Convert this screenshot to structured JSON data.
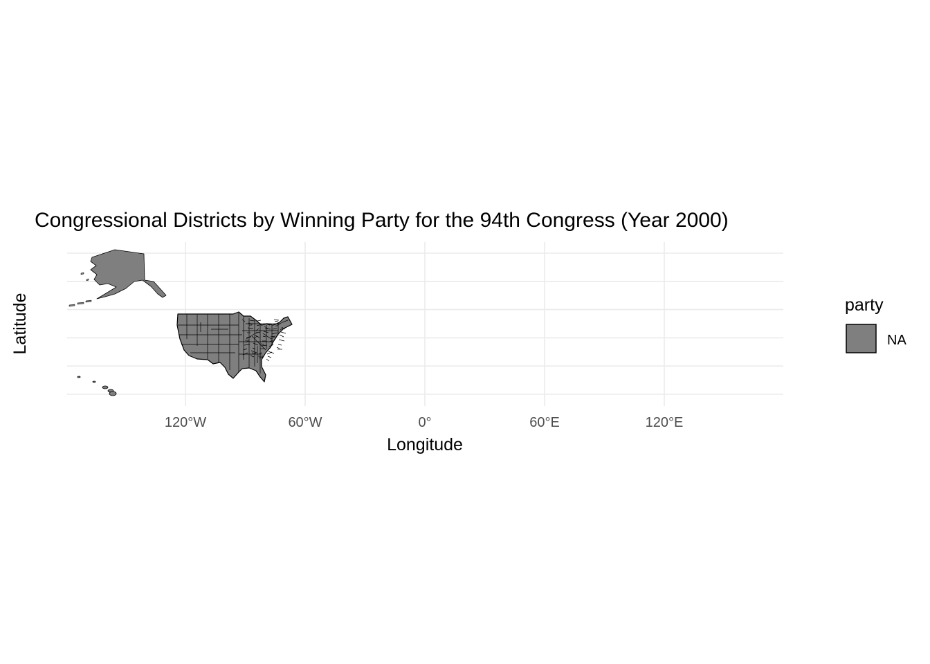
{
  "chart_data": {
    "type": "map",
    "title": "Congressional Districts by Winning Party for the 94th Congress (Year 2000)",
    "xlabel": "Longitude",
    "ylabel": "Latitude",
    "x_ticks": [
      {
        "value": -120,
        "label": "120°W"
      },
      {
        "value": -60,
        "label": "60°W"
      },
      {
        "value": 0,
        "label": "0°"
      },
      {
        "value": 60,
        "label": "60°E"
      },
      {
        "value": 120,
        "label": "120°E"
      }
    ],
    "y_gridlines": [
      20,
      30,
      40,
      50,
      60,
      70
    ],
    "xlim": [
      -180,
      180
    ],
    "ylim": [
      17,
      72
    ],
    "grid": true,
    "legend": {
      "title": "party",
      "position": "right",
      "items": [
        {
          "label": "NA",
          "color": "#7f7f7f"
        }
      ]
    },
    "fill_color": "#7f7f7f",
    "border_color": "#000000",
    "regions": [
      "Alaska",
      "Contiguous United States",
      "Hawaii"
    ]
  }
}
